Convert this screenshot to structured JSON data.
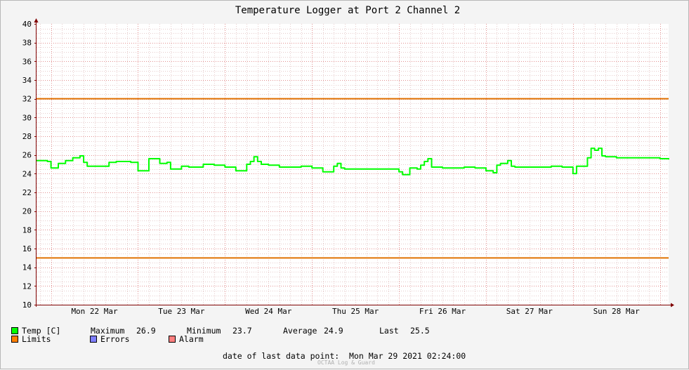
{
  "chart_data": {
    "type": "line",
    "title": "Temperature Logger at Port 2 Channel 2",
    "ylim": [
      10,
      40
    ],
    "yticks": [
      10,
      12,
      14,
      16,
      18,
      20,
      22,
      24,
      26,
      28,
      30,
      32,
      34,
      36,
      38,
      40
    ],
    "xlim": [
      "2021-03-21 20:00",
      "2021-03-29 02:24"
    ],
    "xtick_labels": [
      "Mon 22 Mar",
      "Tue 23 Mar",
      "Wed 24 Mar",
      "Thu 25 Mar",
      "Fri 26 Mar",
      "Sat 27 Mar",
      "Sun 28 Mar"
    ],
    "grid": true,
    "limits": {
      "upper": 32,
      "lower": 15
    },
    "series": [
      {
        "name": "Temp [C]",
        "color": "#00ff00",
        "x": [
          "2021-03-21 20:00",
          "2021-03-21 22:00",
          "2021-03-21 23:00",
          "2021-03-22 00:00",
          "2021-03-22 02:00",
          "2021-03-22 04:00",
          "2021-03-22 06:00",
          "2021-03-22 08:00",
          "2021-03-22 09:00",
          "2021-03-22 10:00",
          "2021-03-22 12:00",
          "2021-03-22 14:00",
          "2021-03-22 16:00",
          "2021-03-22 18:00",
          "2021-03-22 20:00",
          "2021-03-22 22:00",
          "2021-03-23 00:00",
          "2021-03-23 03:00",
          "2021-03-23 06:00",
          "2021-03-23 07:00",
          "2021-03-23 08:00",
          "2021-03-23 09:00",
          "2021-03-23 12:00",
          "2021-03-23 14:00",
          "2021-03-23 16:00",
          "2021-03-23 18:00",
          "2021-03-23 21:00",
          "2021-03-24 00:00",
          "2021-03-24 03:00",
          "2021-03-24 06:00",
          "2021-03-24 07:00",
          "2021-03-24 08:00",
          "2021-03-24 09:00",
          "2021-03-24 10:00",
          "2021-03-24 12:00",
          "2021-03-24 15:00",
          "2021-03-24 18:00",
          "2021-03-24 21:00",
          "2021-03-25 00:00",
          "2021-03-25 03:00",
          "2021-03-25 06:00",
          "2021-03-25 07:00",
          "2021-03-25 08:00",
          "2021-03-25 09:00",
          "2021-03-25 12:00",
          "2021-03-25 15:00",
          "2021-03-25 18:00",
          "2021-03-25 21:00",
          "2021-03-26 00:00",
          "2021-03-26 01:00",
          "2021-03-26 03:00",
          "2021-03-26 05:00",
          "2021-03-26 06:00",
          "2021-03-26 07:00",
          "2021-03-26 08:00",
          "2021-03-26 09:00",
          "2021-03-26 12:00",
          "2021-03-26 15:00",
          "2021-03-26 18:00",
          "2021-03-26 21:00",
          "2021-03-27 00:00",
          "2021-03-27 02:00",
          "2021-03-27 03:00",
          "2021-03-27 04:00",
          "2021-03-27 06:00",
          "2021-03-27 07:00",
          "2021-03-27 08:00",
          "2021-03-27 09:00",
          "2021-03-27 12:00",
          "2021-03-27 15:00",
          "2021-03-27 18:00",
          "2021-03-27 21:00",
          "2021-03-28 00:00",
          "2021-03-28 01:00",
          "2021-03-28 03:00",
          "2021-03-28 04:00",
          "2021-03-28 05:00",
          "2021-03-28 06:00",
          "2021-03-28 07:00",
          "2021-03-28 08:00",
          "2021-03-28 09:00",
          "2021-03-28 12:00",
          "2021-03-28 18:00",
          "2021-03-29 00:00",
          "2021-03-29 02:24"
        ],
        "y": [
          25.4,
          25.4,
          25.3,
          24.6,
          25.1,
          25.4,
          25.7,
          25.9,
          25.2,
          24.8,
          24.8,
          24.8,
          25.2,
          25.3,
          25.3,
          25.2,
          24.3,
          25.6,
          25.1,
          25.1,
          25.2,
          24.5,
          24.8,
          24.7,
          24.7,
          25.0,
          24.9,
          24.7,
          24.3,
          25.0,
          25.3,
          25.8,
          25.3,
          25.0,
          24.9,
          24.7,
          24.7,
          24.8,
          24.6,
          24.2,
          24.8,
          25.1,
          24.6,
          24.5,
          24.5,
          24.5,
          24.5,
          24.5,
          24.2,
          23.9,
          24.6,
          24.5,
          24.9,
          25.3,
          25.6,
          24.7,
          24.6,
          24.6,
          24.7,
          24.6,
          24.3,
          24.1,
          24.9,
          25.1,
          25.4,
          24.8,
          24.7,
          24.7,
          24.7,
          24.7,
          24.8,
          24.7,
          24.0,
          24.8,
          24.8,
          25.7,
          26.7,
          26.5,
          26.7,
          25.9,
          25.8,
          25.7,
          25.7,
          25.6,
          25.5
        ]
      }
    ]
  },
  "legend": {
    "temp_label": "Temp [C]",
    "maximum_label": "Maximum",
    "maximum_value": "26.9",
    "minimum_label": "Minimum",
    "minimum_value": "23.7",
    "average_label": "Average",
    "average_value": "24.9",
    "last_label": "Last",
    "last_value": "25.5",
    "limits_label": "Limits",
    "errors_label": "Errors",
    "alarm_label": "Alarm",
    "colors": {
      "temp": "#00ff00",
      "limits": "#ff7f00",
      "errors": "#7f7fff",
      "alarm": "#ff7f7f"
    }
  },
  "footer": {
    "last_point_label": "date of last data point:",
    "last_point_value": "Mon Mar 29 2021 02:24:00",
    "watermark": "OCTAA Log & Guard"
  },
  "style": {
    "background": "#f4f4f4",
    "plot_background": "#ffffff",
    "limit_color": "#e07000",
    "grid_minor": "#e6cccc",
    "grid_major": "#e29090",
    "axis_color": "#800000"
  }
}
